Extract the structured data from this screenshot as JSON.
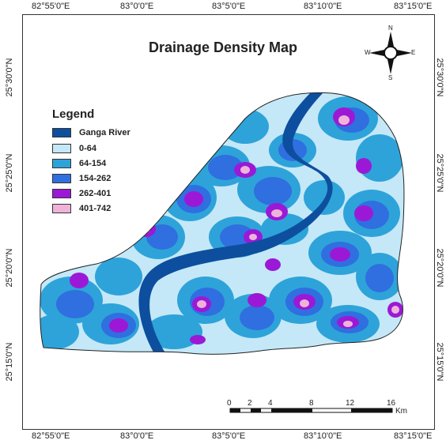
{
  "title": "Drainage Density Map",
  "axes": {
    "top_labels": [
      "82°55'0\"E",
      "83°0'0\"E",
      "83°5'0\"E",
      "83°10'0\"E",
      "83°15'0\"E"
    ],
    "bottom_labels": [
      "82°55'0\"E",
      "83°0'0\"E",
      "83°5'0\"E",
      "83°10'0\"E",
      "83°15'0\"E"
    ],
    "left_labels": [
      "25°30'0\"N",
      "25°25'0\"N",
      "25°20'0\"N",
      "25°15'0\"N"
    ],
    "right_labels": [
      "25°30'0\"N",
      "25°25'0\"N",
      "25°20'0\"N",
      "25°15'0\"N"
    ]
  },
  "legend": {
    "title": "Legend",
    "items": [
      {
        "label": "Ganga River",
        "color": "#0d4f9e"
      },
      {
        "label": "0-64",
        "color": "#c4e8f7"
      },
      {
        "label": "64-154",
        "color": "#2ea3d9"
      },
      {
        "label": "154-262",
        "color": "#2f6fe0"
      },
      {
        "label": "262-401",
        "color": "#9b19d6"
      },
      {
        "label": "401-742",
        "color": "#efb3d8"
      }
    ]
  },
  "compass": {
    "n": "N",
    "s": "S",
    "e": "E",
    "w": "W"
  },
  "scale_bar": {
    "ticks": [
      "0",
      "2",
      "4",
      "8",
      "12",
      "16"
    ],
    "unit": "Km"
  }
}
